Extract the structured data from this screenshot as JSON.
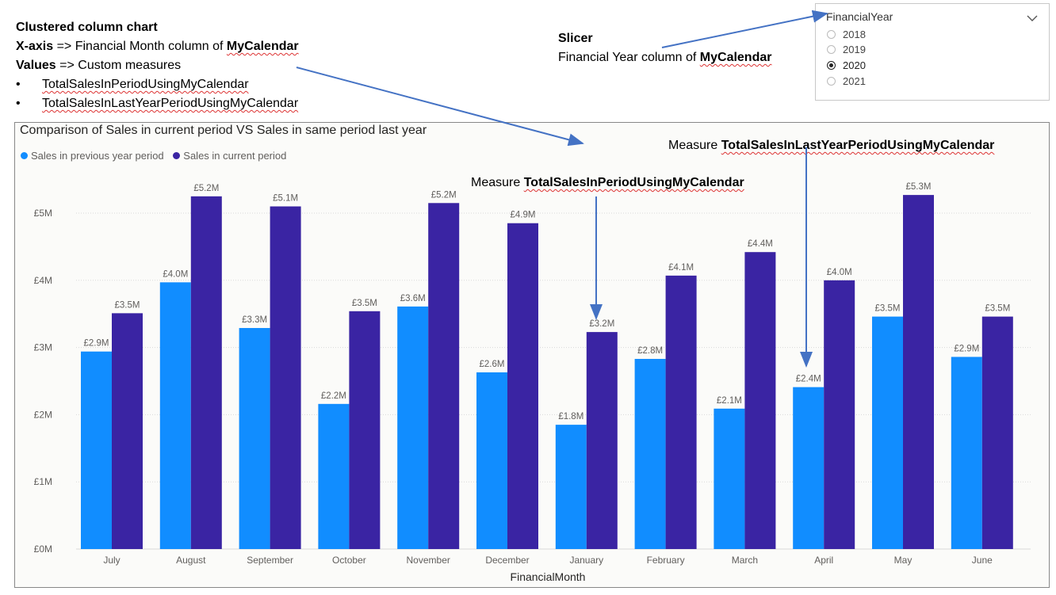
{
  "annotations": {
    "heading": "Clustered column chart",
    "xaxis_key": "X-axis",
    "xaxis_arrow": " => ",
    "xaxis_text": "Financial Month column of ",
    "xaxis_table": "MyCalendar",
    "values_key": "Values",
    "values_text": " => Custom measures",
    "bullet_char": "•",
    "bullets": [
      "TotalSalesInPeriodUsingMyCalendar",
      "TotalSalesInLastYearPeriodUsingMyCalendar"
    ],
    "slicer_heading": "Slicer",
    "slicer_text": "Financial Year column of ",
    "slicer_table": "MyCalendar",
    "measure_prefix": "Measure ",
    "measure_current": "TotalSalesInPeriodUsingMyCalendar",
    "measure_last": "TotalSalesInLastYearPeriodUsingMyCalendar"
  },
  "slicer": {
    "title": "FinancialYear",
    "chevron_icon": "chevron-down-icon",
    "options": [
      {
        "label": "2018",
        "selected": false
      },
      {
        "label": "2019",
        "selected": false
      },
      {
        "label": "2020",
        "selected": true
      },
      {
        "label": "2021",
        "selected": false
      }
    ]
  },
  "colors": {
    "previous": "#118DFF",
    "current": "#3A24A3",
    "arrow": "#4472C4",
    "grid": "#d9d9d9"
  },
  "chart_data": {
    "type": "bar",
    "title": "Comparison of Sales in current period VS Sales in same period last year",
    "xlabel": "FinancialMonth",
    "ylabel": "",
    "ylim": [
      0,
      5.5
    ],
    "y_ticks": [
      0,
      1,
      2,
      3,
      4,
      5
    ],
    "y_tick_labels": [
      "£0M",
      "£1M",
      "£2M",
      "£3M",
      "£4M",
      "£5M"
    ],
    "grid": true,
    "legend_position": "top-left",
    "categories": [
      "July",
      "August",
      "September",
      "October",
      "November",
      "December",
      "January",
      "February",
      "March",
      "April",
      "May",
      "June"
    ],
    "series": [
      {
        "name": "Sales in previous year period",
        "values": [
          2.94,
          3.97,
          3.29,
          2.16,
          3.61,
          2.63,
          1.85,
          2.83,
          2.09,
          2.41,
          3.46,
          2.86
        ],
        "labels": [
          "£2.9M",
          "£4.0M",
          "£3.3M",
          "£2.2M",
          "£3.6M",
          "£2.6M",
          "£1.8M",
          "£2.8M",
          "£2.1M",
          "£2.4M",
          "£3.5M",
          "£2.9M"
        ]
      },
      {
        "name": "Sales in current period",
        "values": [
          3.51,
          5.25,
          5.1,
          3.54,
          5.15,
          4.85,
          3.23,
          4.07,
          4.42,
          4.0,
          5.27,
          3.46
        ],
        "labels": [
          "£3.5M",
          "£5.2M",
          "£5.1M",
          "£3.5M",
          "£5.2M",
          "£4.9M",
          "£3.2M",
          "£4.1M",
          "£4.4M",
          "£4.0M",
          "£5.3M",
          "£3.5M"
        ]
      }
    ]
  }
}
